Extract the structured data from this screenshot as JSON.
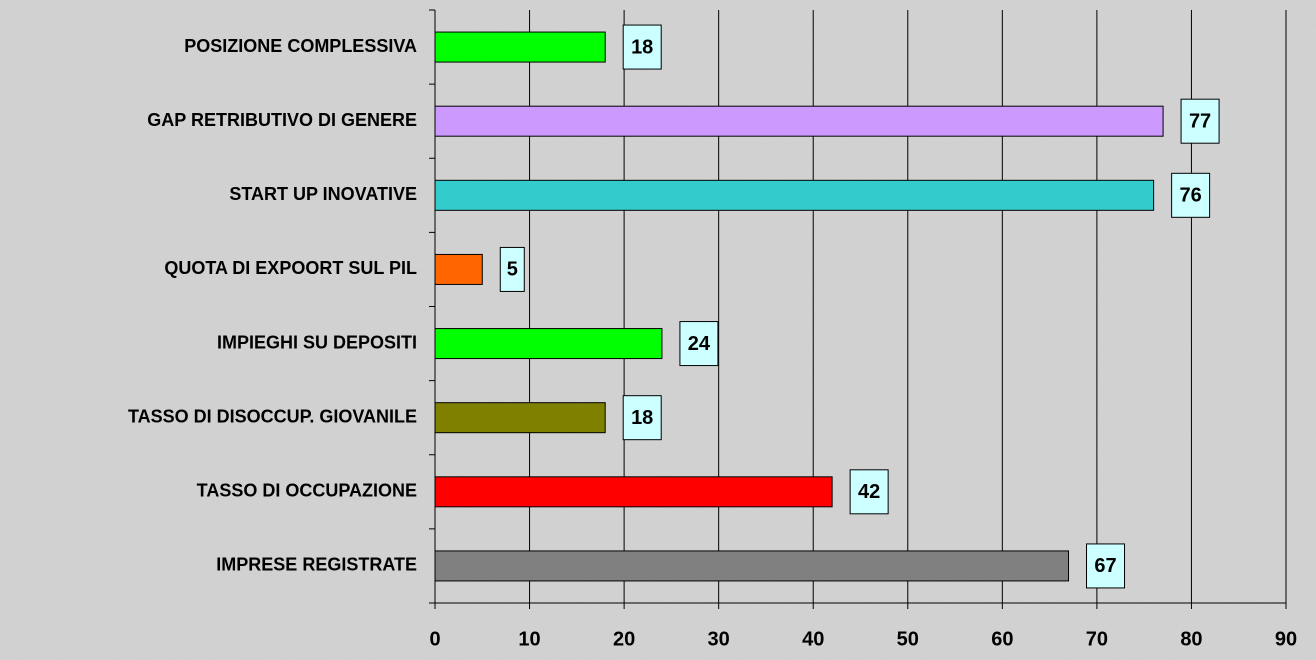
{
  "chart_data": {
    "type": "bar",
    "orientation": "horizontal",
    "categories": [
      "POSIZIONE COMPLESSIVA",
      "GAP RETRIBUTIVO DI GENERE",
      "START UP INOVATIVE",
      "QUOTA DI EXPOORT SUL PIL",
      "IMPIEGHI SU DEPOSITI",
      "TASSO DI DISOCCUP. GIOVANILE",
      "TASSO DI OCCUPAZIONE",
      "IMPRESE REGISTRATE"
    ],
    "values": [
      18,
      77,
      76,
      5,
      24,
      18,
      42,
      67
    ],
    "colors": [
      "#00ff00",
      "#cc99ff",
      "#33cccc",
      "#ff6600",
      "#00ff00",
      "#808000",
      "#ff0000",
      "#808080"
    ],
    "xlim": [
      0,
      90
    ],
    "xticks": [
      0,
      10,
      20,
      30,
      40,
      50,
      60,
      70,
      80,
      90
    ],
    "grid": true
  }
}
